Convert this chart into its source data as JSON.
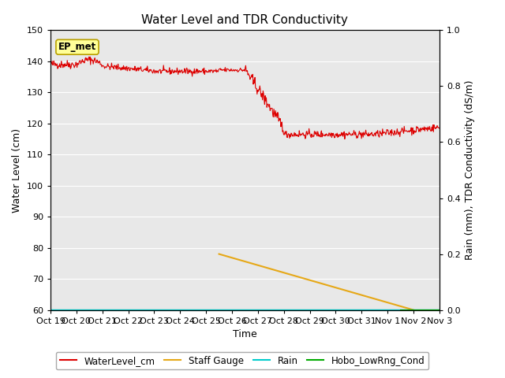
{
  "title": "Water Level and TDR Conductivity",
  "ylabel_left": "Water Level (cm)",
  "ylabel_right": "Rain (mm), TDR Conductivity (dS/m)",
  "xlabel": "Time",
  "ylim_left": [
    60,
    150
  ],
  "ylim_right": [
    0.0,
    1.0
  ],
  "yticks_left": [
    60,
    70,
    80,
    90,
    100,
    110,
    120,
    130,
    140,
    150
  ],
  "yticks_right": [
    0.0,
    0.2,
    0.4,
    0.6,
    0.8,
    1.0
  ],
  "xtick_labels": [
    "Oct 19",
    "Oct 20",
    "Oct 21",
    "Oct 22",
    "Oct 23",
    "Oct 24",
    "Oct 25",
    "Oct 26",
    "Oct 27",
    "Oct 28",
    "Oct 29",
    "Oct 30",
    "Oct 31",
    "Nov 1",
    "Nov 2",
    "Nov 3"
  ],
  "background_color": "#e8e8e8",
  "figure_background": "#ffffff",
  "grid_color": "#ffffff",
  "annotation_label": "EP_met",
  "annotation_color": "#ffff99",
  "annotation_border": "#b8a000",
  "water_level_color": "#dd0000",
  "staff_gauge_color": "#e6a817",
  "rain_color": "#00cccc",
  "hobo_color": "#00aa00",
  "legend_items": [
    "WaterLevel_cm",
    "Staff Gauge",
    "Rain",
    "Hobo_LowRng_Cond"
  ],
  "xlim": [
    0,
    15
  ],
  "n_pts": 720,
  "seed": 42
}
